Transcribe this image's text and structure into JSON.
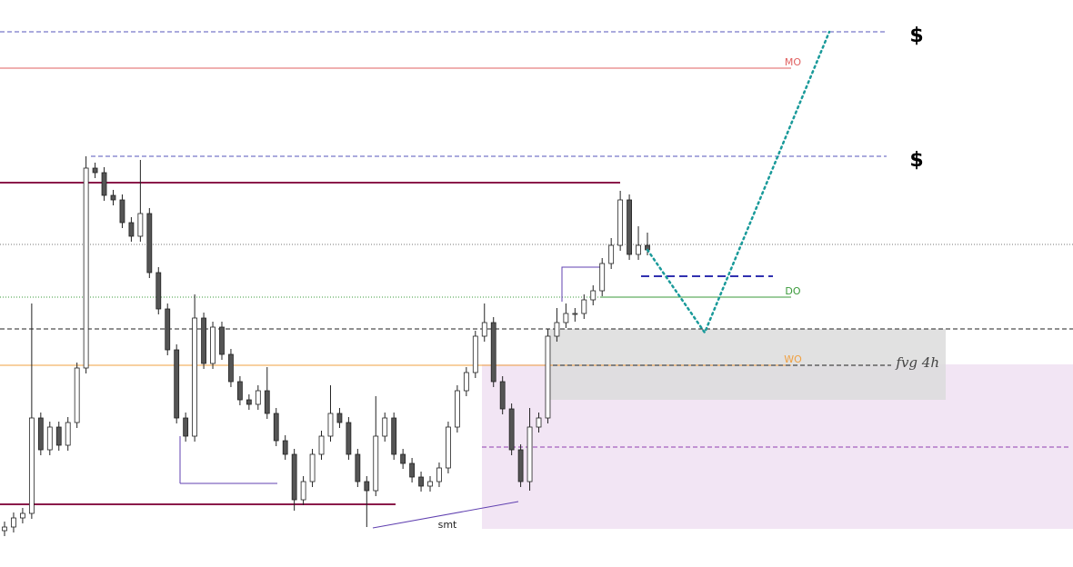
{
  "chart_data": {
    "type": "candlestick",
    "ylim": [
      0,
      624
    ],
    "open": [
      40,
      44,
      54,
      59,
      164,
      129,
      154,
      134,
      159,
      219,
      439,
      434,
      409,
      404,
      379,
      364,
      389,
      324,
      284,
      239,
      164,
      144,
      274,
      224,
      264,
      234,
      204,
      184,
      179,
      194,
      169,
      139,
      124,
      74,
      94,
      124,
      144,
      169,
      159,
      124,
      94,
      84,
      144,
      164,
      124,
      114,
      99,
      89,
      94,
      109,
      154,
      194,
      214,
      254,
      269,
      204,
      174,
      129,
      94,
      154,
      164,
      254,
      269,
      279,
      279,
      294,
      304,
      334,
      354,
      404,
      344,
      354
    ],
    "high": [
      50,
      60,
      65,
      290,
      170,
      160,
      160,
      165,
      225,
      452,
      445,
      440,
      415,
      410,
      385,
      448,
      395,
      330,
      290,
      245,
      170,
      300,
      280,
      270,
      270,
      240,
      210,
      190,
      200,
      220,
      175,
      145,
      130,
      100,
      130,
      150,
      200,
      175,
      165,
      130,
      100,
      188,
      170,
      170,
      130,
      120,
      105,
      100,
      115,
      160,
      200,
      220,
      260,
      290,
      275,
      210,
      180,
      135,
      175,
      170,
      262,
      285,
      290,
      285,
      300,
      310,
      340,
      362,
      414,
      410,
      375,
      368
    ],
    "low": [
      34,
      38,
      48,
      53,
      123,
      123,
      128,
      128,
      153,
      213,
      428,
      403,
      398,
      373,
      358,
      358,
      318,
      278,
      233,
      158,
      138,
      138,
      218,
      218,
      228,
      198,
      178,
      173,
      173,
      163,
      133,
      118,
      62,
      68,
      88,
      118,
      138,
      153,
      118,
      88,
      44,
      78,
      138,
      118,
      108,
      93,
      83,
      83,
      88,
      103,
      148,
      188,
      208,
      248,
      198,
      168,
      123,
      88,
      84,
      148,
      158,
      248,
      263,
      270,
      273,
      288,
      298,
      328,
      348,
      338,
      338,
      343
    ],
    "close": [
      44,
      54,
      59,
      164,
      129,
      154,
      134,
      159,
      219,
      439,
      434,
      409,
      404,
      379,
      364,
      389,
      324,
      284,
      239,
      164,
      144,
      274,
      224,
      264,
      234,
      204,
      184,
      179,
      194,
      169,
      139,
      124,
      74,
      94,
      124,
      144,
      169,
      159,
      124,
      94,
      84,
      144,
      164,
      124,
      114,
      99,
      89,
      94,
      109,
      154,
      194,
      214,
      254,
      269,
      204,
      174,
      129,
      94,
      154,
      164,
      254,
      269,
      279,
      279,
      294,
      304,
      334,
      354,
      404,
      344,
      354,
      349
    ],
    "levels": [
      {
        "value": 589,
        "color": "#5555bb",
        "label": "$"
      },
      {
        "value": 549,
        "color": "#e06060",
        "label": "MO"
      },
      {
        "value": 452,
        "color": "#5555bb",
        "label": "$"
      },
      {
        "value": 423,
        "color": "#8b1a4a"
      },
      {
        "value": 355,
        "color": "#777777"
      },
      {
        "value": 320,
        "color": "#3030b0"
      },
      {
        "value": 297,
        "color": "#3a9a3a",
        "label": "DO"
      },
      {
        "value": 262,
        "color": "#222222"
      },
      {
        "value": 222,
        "color": "#f0a040",
        "label": "WO"
      },
      {
        "value": 132,
        "color": "#9040b0"
      },
      {
        "value": 69,
        "color": "#8b1a4a"
      }
    ],
    "zones": [
      {
        "low": 42,
        "high": 223,
        "color": "#f0e0f2"
      },
      {
        "low": 184,
        "high": 262,
        "color": "#dcdcdc",
        "label": "fvg 4h"
      }
    ],
    "smt": {
      "label": "smt",
      "values": [
        43,
        72
      ]
    },
    "projection": [
      349,
      258,
      589
    ]
  }
}
